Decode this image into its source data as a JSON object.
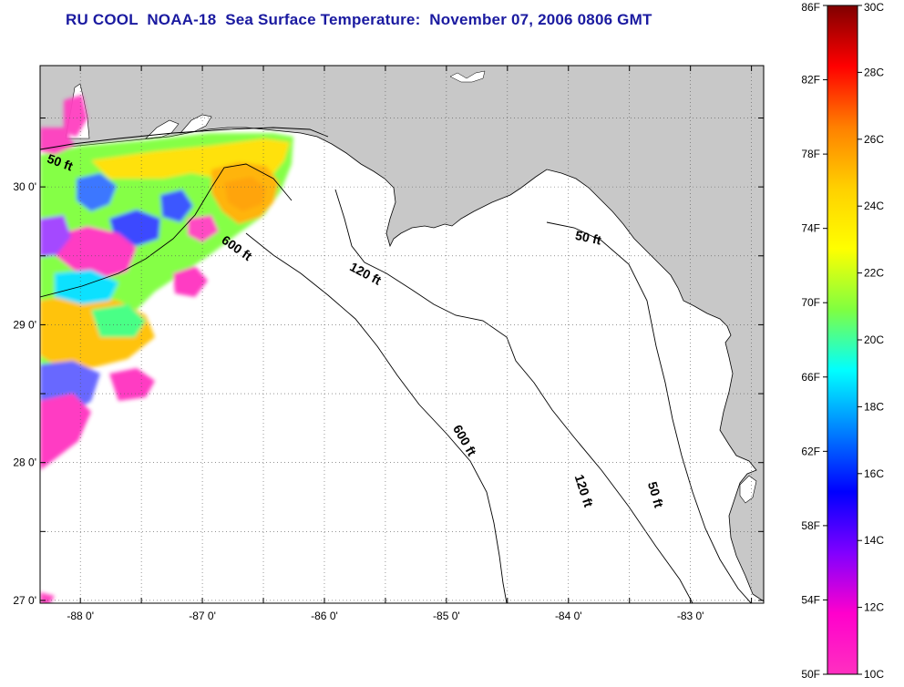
{
  "title": "RU COOL  NOAA-18  Sea Surface Temperature:  November 07, 2006 0806 GMT",
  "map": {
    "lon_range": [
      -88.33,
      -82.4
    ],
    "lat_range": [
      26.98,
      30.88
    ],
    "x_ticks": [
      {
        "value": -88,
        "label": "-88 0'"
      },
      {
        "value": -87,
        "label": "-87 0'"
      },
      {
        "value": -86,
        "label": "-86 0'"
      },
      {
        "value": -85,
        "label": "-85 0'"
      },
      {
        "value": -84,
        "label": "-84 0'"
      },
      {
        "value": -83,
        "label": "-83 0'"
      }
    ],
    "y_ticks": [
      {
        "value": 30,
        "label": "30 0'"
      },
      {
        "value": 29,
        "label": "29 0'"
      },
      {
        "value": 28,
        "label": "28 0'"
      },
      {
        "value": 27,
        "label": "27 0'"
      }
    ],
    "contour_labels": [
      {
        "text": "50 ft",
        "lon": -88.28,
        "lat": 30.18
      },
      {
        "text": "600 ft",
        "lon": -86.85,
        "lat": 29.6
      },
      {
        "text": "120 ft",
        "lon": -85.8,
        "lat": 29.4
      },
      {
        "text": "50 ft",
        "lon": -83.95,
        "lat": 29.62
      },
      {
        "text": "600 ft",
        "lon": -84.95,
        "lat": 28.25
      },
      {
        "text": "120 ft",
        "lon": -83.95,
        "lat": 27.9
      },
      {
        "text": "50 ft",
        "lon": -83.35,
        "lat": 27.85
      }
    ],
    "colors": {
      "land": "#c8c8c8",
      "water": "#ffffff",
      "grid": "#555555"
    }
  },
  "colorbar": {
    "f_labels": [
      "86F",
      "82F",
      "78F",
      "74F",
      "70F",
      "66F",
      "62F",
      "58F",
      "54F",
      "50F"
    ],
    "c_labels": [
      "30C",
      "28C",
      "26C",
      "24C",
      "22C",
      "20C",
      "18C",
      "16C",
      "14C",
      "12C",
      "10C"
    ],
    "stops": [
      "#800000",
      "#ff0000",
      "#ff8000",
      "#ffd000",
      "#ffff00",
      "#80ff40",
      "#00ffff",
      "#0080ff",
      "#0000ff",
      "#8000ff",
      "#ff00cc",
      "#ff30c0"
    ]
  }
}
